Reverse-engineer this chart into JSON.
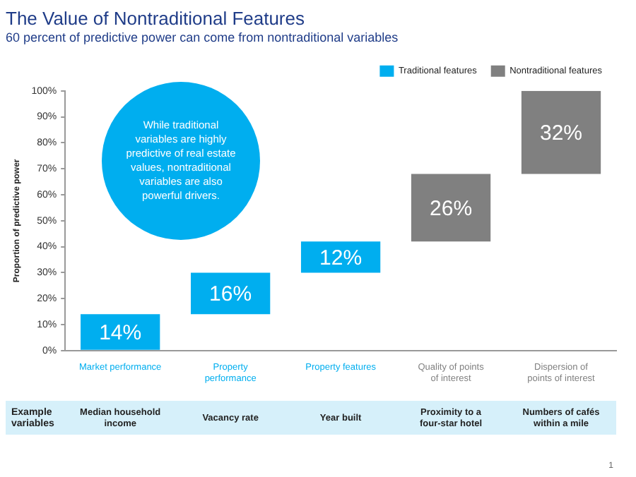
{
  "chart_data": {
    "type": "bar",
    "title": "The Value of Nontraditional Features",
    "subtitle": "60 percent of predictive power can come from nontraditional variables",
    "ylabel": "Proportion of predictive power",
    "categories": [
      "Market performance",
      "Property performance",
      "Property features",
      "Quality of points of interest",
      "Dispersion of points of interest"
    ],
    "series": [
      {
        "name": "Traditional features",
        "color": "#00aeef",
        "values": [
          14,
          16,
          12,
          null,
          null
        ],
        "base": [
          0,
          14,
          30,
          null,
          null
        ],
        "value_labels": [
          "14%",
          "16%",
          "12%",
          null,
          null
        ]
      },
      {
        "name": "Nontraditional features",
        "color": "#808080",
        "values": [
          null,
          null,
          null,
          26,
          32
        ],
        "base": [
          null,
          null,
          null,
          42,
          68
        ],
        "value_labels": [
          null,
          null,
          null,
          "26%",
          "32%"
        ]
      }
    ],
    "ylim": [
      0,
      100
    ],
    "yticks": [
      {
        "value": 0,
        "label": "0%"
      },
      {
        "value": 10,
        "label": "10%"
      },
      {
        "value": 20,
        "label": "20%"
      },
      {
        "value": 30,
        "label": "30%"
      },
      {
        "value": 40,
        "label": "40%"
      },
      {
        "value": 50,
        "label": "50%"
      },
      {
        "value": 60,
        "label": "60%"
      },
      {
        "value": 70,
        "label": "70%"
      },
      {
        "value": 80,
        "label": "80%"
      },
      {
        "value": 90,
        "label": "90%"
      },
      {
        "value": 100,
        "label": "100%"
      }
    ],
    "grid": false,
    "legend": "top right",
    "annotations": [
      "While traditional variables are highly predictive of real estate values, nontraditional variables are also powerful drivers.",
      "Example variables",
      "Median household income",
      "Vacancy rate",
      "Year built",
      "Proximity to a four-star hotel",
      "Numbers of cafés within a mile",
      "1"
    ]
  }
}
